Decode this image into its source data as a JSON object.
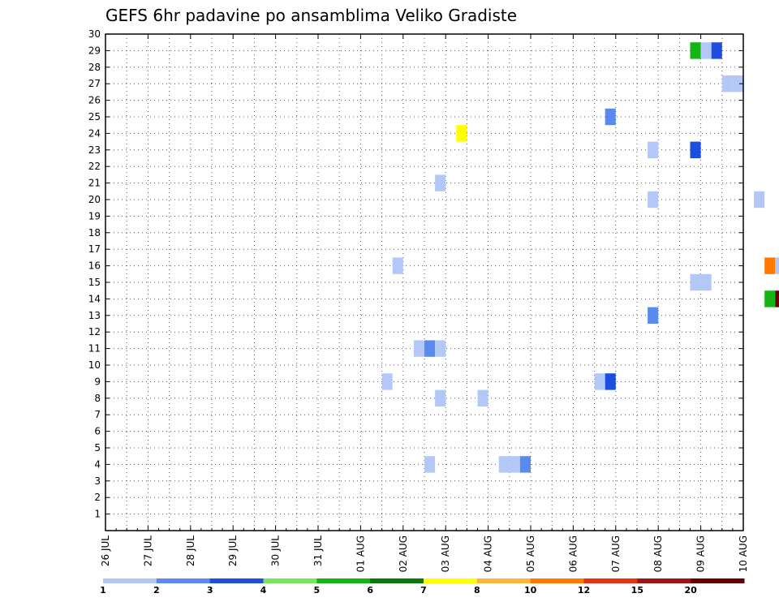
{
  "chart_data": {
    "type": "heatmap",
    "title": "GEFS 6hr padavine po ansamblima Veliko Gradiste",
    "xlabel": "",
    "ylabel": "",
    "x_ticks": [
      "26 JUL",
      "27 JUL",
      "28 JUL",
      "29 JUL",
      "30 JUL",
      "31 JUL",
      "01 AUG",
      "02 AUG",
      "03 AUG",
      "04 AUG",
      "05 AUG",
      "06 AUG",
      "07 AUG",
      "08 AUG",
      "09 AUG",
      "10 AUG"
    ],
    "x_range_days": [
      0,
      15
    ],
    "y_ticks": [
      1,
      2,
      3,
      4,
      5,
      6,
      7,
      8,
      9,
      10,
      11,
      12,
      13,
      14,
      15,
      16,
      17,
      18,
      19,
      20,
      21,
      22,
      23,
      24,
      25,
      26,
      27,
      28,
      29,
      30
    ],
    "y_range": [
      0,
      30
    ],
    "grid": true,
    "colorbar": {
      "labels": [
        "1",
        "2",
        "3",
        "4",
        "5",
        "6",
        "7",
        "8",
        "10",
        "12",
        "15",
        "20"
      ],
      "colors": [
        "#b4c8f8",
        "#5a8af0",
        "#1e4ee0",
        "#78e65a",
        "#14b414",
        "#0a780a",
        "#ffff00",
        "#ffb43c",
        "#ff7800",
        "#e63214",
        "#a01414",
        "#640000"
      ]
    },
    "cells": [
      {
        "day": 13.875,
        "member": 29,
        "level": 5
      },
      {
        "day": 14.125,
        "member": 29,
        "level": 1
      },
      {
        "day": 14.375,
        "member": 29,
        "level": 3
      },
      {
        "day": 14.625,
        "member": 27,
        "level": 1
      },
      {
        "day": 14.875,
        "member": 27,
        "level": 1
      },
      {
        "day": 11.875,
        "member": 25,
        "level": 2
      },
      {
        "day": 8.375,
        "member": 24,
        "level": 7
      },
      {
        "day": 12.875,
        "member": 23,
        "level": 1
      },
      {
        "day": 13.875,
        "member": 23,
        "level": 3
      },
      {
        "day": 7.875,
        "member": 21,
        "level": 1
      },
      {
        "day": 12.875,
        "member": 20,
        "level": 1
      },
      {
        "day": 15.375,
        "member": 20,
        "level": 1
      },
      {
        "day": 6.875,
        "member": 16,
        "level": 1
      },
      {
        "day": 15.625,
        "member": 16,
        "level": 9
      },
      {
        "day": 15.875,
        "member": 16,
        "level": 1
      },
      {
        "day": 13.875,
        "member": 15,
        "level": 1
      },
      {
        "day": 14.125,
        "member": 15,
        "level": 1
      },
      {
        "day": 15.625,
        "member": 14,
        "level": 5
      },
      {
        "day": 15.875,
        "member": 14,
        "level": 12
      },
      {
        "day": 12.875,
        "member": 13,
        "level": 2
      },
      {
        "day": 7.375,
        "member": 11,
        "level": 1
      },
      {
        "day": 7.625,
        "member": 11,
        "level": 2
      },
      {
        "day": 7.875,
        "member": 11,
        "level": 1
      },
      {
        "day": 6.625,
        "member": 9,
        "level": 1
      },
      {
        "day": 11.625,
        "member": 9,
        "level": 1
      },
      {
        "day": 11.875,
        "member": 9,
        "level": 3
      },
      {
        "day": 7.875,
        "member": 8,
        "level": 1
      },
      {
        "day": 8.875,
        "member": 8,
        "level": 1
      },
      {
        "day": 7.625,
        "member": 4,
        "level": 1
      },
      {
        "day": 9.375,
        "member": 4,
        "level": 1
      },
      {
        "day": 9.625,
        "member": 4,
        "level": 1
      },
      {
        "day": 9.875,
        "member": 4,
        "level": 2
      }
    ]
  }
}
